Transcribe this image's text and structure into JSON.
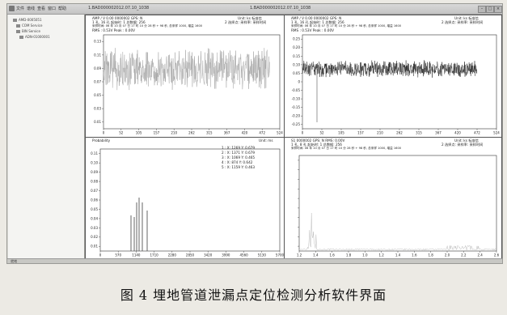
{
  "app": {
    "menu": [
      "文件",
      "谱线",
      "查看",
      "窗口",
      "帮助"
    ],
    "title_left": "1.BAD000002012.07.10_1038",
    "title_right": "1.BAD000002012.07.10_1038"
  },
  "sidebar": {
    "items": [
      "AMD-0005051",
      "COM Service",
      "BIN Service",
      "ADN-01000001"
    ]
  },
  "status": {
    "text": "就绪"
  },
  "panels": [
    {
      "id": "top-left",
      "header_lines": [
        "AMP / V   0.00 0000002  GPS: N",
        "1 孔, 16 孔    起始时: 1 总数据: 256",
        "采样时间: 06 年 10 月 07 日 17 时 10 分 28 秒 + 98 秒, 总采样 1000, 增益 1600",
        "RMS : 0.53V   Peak : 0.00V"
      ],
      "header_right": [
        "Unit: ks 标准信",
        "2 选择点: 采样率: 采样时间"
      ],
      "y_ticks": [
        "0.13",
        "0.11",
        "0.09",
        "0.07",
        "0.05",
        "0.03",
        "0.01"
      ],
      "x_ticks": [
        "0",
        "52",
        "105",
        "157",
        "210",
        "262",
        "315",
        "367",
        "420",
        "472",
        "524"
      ]
    },
    {
      "id": "top-right",
      "header_lines": [
        "AMP / V   0.00 0000002  GPS: N",
        "1 孔, 16 孔    起始时: 1 总数据: 256",
        "采样时间: 06 年 10 月 07 日 17 时 10 分 28 秒 + 98 秒, 总采样 1000, 增益 1600",
        "RMS : 0.53V   Peak : 0.00V"
      ],
      "header_right": [
        "Unit: ks 标准信",
        "2 选择点: 采样率: 采样时间"
      ],
      "y_ticks": [
        "0.25",
        "0.20",
        "0.15",
        "0.10",
        "0.05",
        "0",
        "-0.05",
        "-0.10",
        "-0.15",
        "-0.20",
        "-0.25"
      ],
      "x_ticks": [
        "0",
        "52",
        "105",
        "157",
        "210",
        "262",
        "315",
        "367",
        "420",
        "472",
        "524"
      ]
    },
    {
      "id": "bottom-left",
      "header_lines": [
        "Probability"
      ],
      "header_right": [
        "Unit: ms"
      ],
      "annotations": [
        "1 : X: 1269   Y: 0.679",
        "2 : X: 1371   Y: 0.679",
        "3 : X: 1069   Y: 0.465",
        "4 : X: 874    Y: 0.642",
        "5 : X: 1159   Y: 0.463"
      ],
      "y_ticks": [
        "0.11",
        "0.10",
        "0.09",
        "0.08",
        "0.07",
        "0.06",
        "0.05",
        "0.04",
        "0.03",
        "0.02",
        "0.01"
      ],
      "x_ticks": [
        "0",
        "570",
        "1140",
        "1710",
        "2280",
        "2850",
        "3420",
        "3990",
        "4560",
        "5130",
        "5700"
      ]
    },
    {
      "id": "bottom-right",
      "header_lines": [
        "S1 0000002   GPS: N   RMS: 0.00V",
        "1 孔, 8 孔    起始时: 1 总数据: 256",
        "采样时间: 06 年 10 月 07 日 17 时 10 分 28 秒 + 98 秒, 总采样 1000, 增益 1600"
      ],
      "header_right": [
        "Unit: ks 标准信",
        "2 选择点: 采样率: 采样时间"
      ],
      "y_ticks": [
        "",
        "",
        "",
        "",
        "",
        "",
        "",
        "",
        "",
        ""
      ],
      "x_ticks": [
        "1.2",
        "1.4",
        "1.6",
        "1.8",
        "1.0",
        "1.2",
        "1.4",
        "1.6",
        "1.8",
        "2.0",
        "2.2",
        "2.4",
        "2.6"
      ]
    }
  ],
  "caption": "图 4   埋地管道泄漏点定位检测分析软件界面",
  "colors": {
    "signal_gray": "#a8a8a8",
    "signal_dark": "#222222",
    "bars": "#555555",
    "spectrum": "#bdbdbd"
  }
}
